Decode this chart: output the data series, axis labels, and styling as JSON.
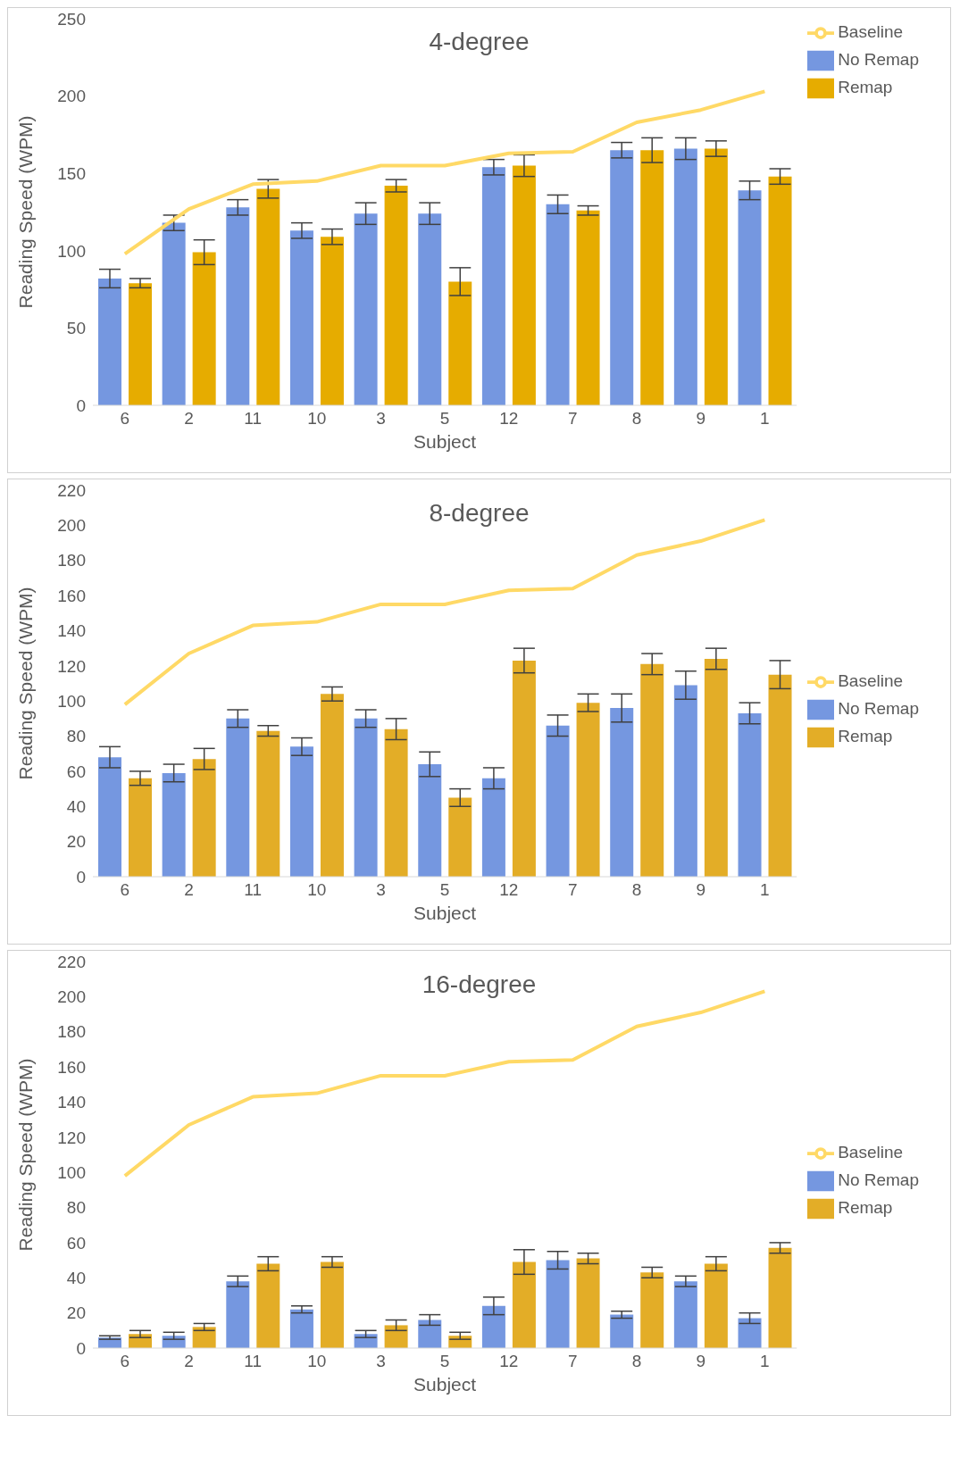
{
  "chart_data": [
    {
      "type": "bar",
      "title": "4-degree",
      "xlabel": "Subject",
      "ylabel": "Reading Speed (WPM)",
      "categories": [
        "6",
        "2",
        "11",
        "10",
        "3",
        "5",
        "12",
        "7",
        "8",
        "9",
        "1"
      ],
      "series": [
        {
          "name": "No Remap",
          "color": "#7597e0",
          "values": [
            82,
            118,
            128,
            113,
            124,
            124,
            154,
            130,
            165,
            166,
            139
          ],
          "errors": [
            6,
            5,
            5,
            5,
            7,
            7,
            5,
            6,
            5,
            7,
            6
          ]
        },
        {
          "name": "Remap",
          "color": "#e6ac00",
          "values": [
            79,
            99,
            140,
            109,
            142,
            80,
            155,
            126,
            165,
            166,
            148
          ],
          "errors": [
            3,
            8,
            6,
            5,
            4,
            9,
            7,
            3,
            8,
            5,
            5
          ]
        },
        {
          "name": "Baseline",
          "type": "line",
          "color": "#ffd966",
          "values": [
            98,
            127,
            143,
            145,
            155,
            155,
            163,
            164,
            183,
            191,
            203
          ]
        }
      ],
      "ylim": [
        0,
        250
      ],
      "yticks": [
        0,
        50,
        100,
        150,
        200,
        250
      ],
      "legend": "top right",
      "marker": "none",
      "line_style": "solid"
    },
    {
      "type": "bar",
      "title": "8-degree",
      "xlabel": "Subject",
      "ylabel": "Reading Speed (WPM)",
      "categories": [
        "6",
        "2",
        "11",
        "10",
        "3",
        "5",
        "12",
        "7",
        "8",
        "9",
        "1"
      ],
      "series": [
        {
          "name": "No Remap",
          "color": "#7597e0",
          "values": [
            68,
            59,
            90,
            74,
            90,
            64,
            56,
            86,
            96,
            109,
            93
          ],
          "errors": [
            6,
            5,
            5,
            5,
            5,
            7,
            6,
            6,
            8,
            8,
            6
          ]
        },
        {
          "name": "Remap",
          "color": "#e3ad27",
          "values": [
            56,
            67,
            83,
            104,
            84,
            45,
            123,
            99,
            121,
            124,
            115
          ],
          "errors": [
            4,
            6,
            3,
            4,
            6,
            5,
            7,
            5,
            6,
            6,
            8
          ]
        },
        {
          "name": "Baseline",
          "type": "line",
          "color": "#ffd966",
          "values": [
            98,
            127,
            143,
            145,
            155,
            155,
            163,
            164,
            183,
            191,
            203
          ]
        }
      ],
      "ylim": [
        0,
        220
      ],
      "yticks": [
        0,
        20,
        40,
        60,
        80,
        100,
        120,
        140,
        160,
        180,
        200,
        220
      ],
      "legend": "right",
      "marker": "none",
      "line_style": "solid"
    },
    {
      "type": "bar",
      "title": "16-degree",
      "xlabel": "Subject",
      "ylabel": "Reading Speed (WPM)",
      "categories": [
        "6",
        "2",
        "11",
        "10",
        "3",
        "5",
        "12",
        "7",
        "8",
        "9",
        "1"
      ],
      "series": [
        {
          "name": "No Remap",
          "color": "#7597e0",
          "values": [
            6,
            7,
            38,
            22,
            8,
            16,
            24,
            50,
            19,
            38,
            17
          ],
          "errors": [
            1,
            2,
            3,
            2,
            2,
            3,
            5,
            5,
            2,
            3,
            3
          ]
        },
        {
          "name": "Remap",
          "color": "#e3ad27",
          "values": [
            8,
            12,
            48,
            49,
            13,
            7,
            49,
            51,
            43,
            48,
            57
          ],
          "errors": [
            2,
            2,
            4,
            3,
            3,
            2,
            7,
            3,
            3,
            4,
            3
          ]
        },
        {
          "name": "Baseline",
          "type": "line",
          "color": "#ffd966",
          "values": [
            98,
            127,
            143,
            145,
            155,
            155,
            163,
            164,
            183,
            191,
            203
          ]
        }
      ],
      "ylim": [
        0,
        220
      ],
      "yticks": [
        0,
        20,
        40,
        60,
        80,
        100,
        120,
        140,
        160,
        180,
        200,
        220
      ],
      "legend": "right",
      "marker": "none",
      "line_style": "solid"
    }
  ]
}
